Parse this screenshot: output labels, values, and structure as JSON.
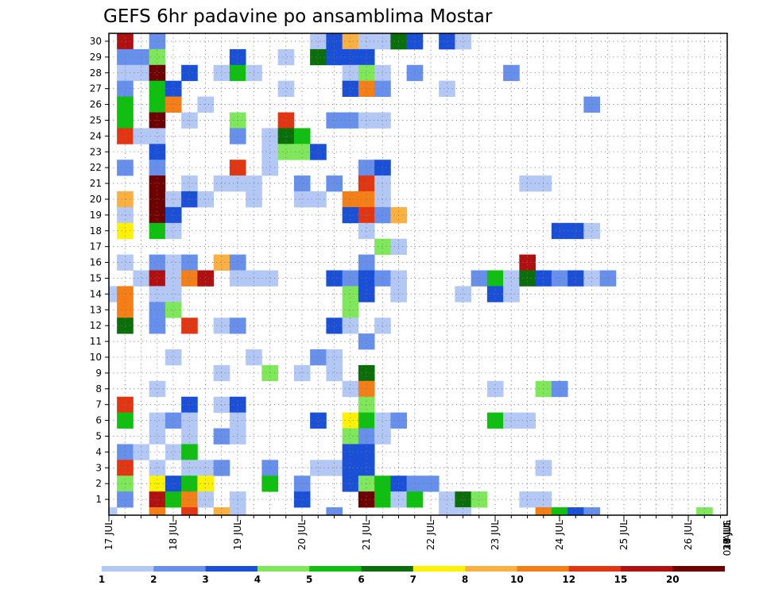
{
  "chart_data": {
    "type": "heatmap",
    "title": "GEFS 6hr padavine po ansamblima Mostar",
    "x_tick_labels": [
      "17 JUL",
      "18 JUL",
      "19 JUL",
      "20 JUL",
      "21 JUL",
      "22 JUL",
      "23 JUL",
      "24 JUL",
      "25 JUL",
      "26 JUL",
      "27 JUL",
      "28 JUL",
      "29 JUL",
      "30 JUL",
      "31 JUL",
      "01 AUG"
    ],
    "y_tick_labels": [
      "1",
      "2",
      "3",
      "4",
      "5",
      "6",
      "7",
      "8",
      "9",
      "10",
      "11",
      "12",
      "13",
      "14",
      "15",
      "16",
      "17",
      "18",
      "19",
      "20",
      "21",
      "22",
      "23",
      "24",
      "25",
      "26",
      "27",
      "28",
      "29",
      "30"
    ],
    "colorbar": {
      "labels": [
        "1",
        "2",
        "3",
        "4",
        "5",
        "6",
        "7",
        "8",
        "10",
        "12",
        "15",
        "20"
      ],
      "colors": [
        "#b4c8f5",
        "#6690ec",
        "#1a4fd8",
        "#7ee85a",
        "#10c010",
        "#0a6e0a",
        "#fff200",
        "#fcb040",
        "#f57f17",
        "#e23612",
        "#b01010",
        "#6e0000"
      ]
    },
    "grid": true,
    "cells_note": "",
    "cells": [
      [
        30,
        1,
        10
      ],
      [
        30,
        3,
        1
      ],
      [
        30,
        13,
        0
      ],
      [
        30,
        14,
        2
      ],
      [
        30,
        15,
        7
      ],
      [
        30,
        16,
        0
      ],
      [
        30,
        17,
        0
      ],
      [
        30,
        18,
        5
      ],
      [
        30,
        19,
        2
      ],
      [
        30,
        21,
        2
      ],
      [
        30,
        22,
        0
      ],
      [
        29,
        1,
        1
      ],
      [
        29,
        2,
        1
      ],
      [
        29,
        3,
        3
      ],
      [
        29,
        8,
        2
      ],
      [
        29,
        11,
        0
      ],
      [
        29,
        13,
        5
      ],
      [
        29,
        14,
        2
      ],
      [
        29,
        15,
        2
      ],
      [
        29,
        16,
        2
      ],
      [
        28,
        1,
        0
      ],
      [
        28,
        2,
        0
      ],
      [
        28,
        3,
        11
      ],
      [
        28,
        5,
        2
      ],
      [
        28,
        7,
        0
      ],
      [
        28,
        8,
        4
      ],
      [
        28,
        9,
        0
      ],
      [
        28,
        15,
        0
      ],
      [
        28,
        16,
        3
      ],
      [
        28,
        17,
        0
      ],
      [
        28,
        19,
        1
      ],
      [
        28,
        25,
        1
      ],
      [
        27,
        1,
        1
      ],
      [
        27,
        3,
        4
      ],
      [
        27,
        4,
        2
      ],
      [
        27,
        11,
        0
      ],
      [
        27,
        15,
        2
      ],
      [
        27,
        16,
        8
      ],
      [
        27,
        17,
        1
      ],
      [
        27,
        21,
        0
      ],
      [
        26,
        1,
        4
      ],
      [
        26,
        3,
        4
      ],
      [
        26,
        4,
        8
      ],
      [
        26,
        6,
        0
      ],
      [
        26,
        30,
        1
      ],
      [
        25,
        1,
        4
      ],
      [
        25,
        3,
        11
      ],
      [
        25,
        5,
        0
      ],
      [
        25,
        8,
        3
      ],
      [
        25,
        11,
        9
      ],
      [
        25,
        14,
        1
      ],
      [
        25,
        15,
        1
      ],
      [
        25,
        16,
        0
      ],
      [
        25,
        17,
        0
      ],
      [
        24,
        1,
        9
      ],
      [
        24,
        2,
        0
      ],
      [
        24,
        3,
        0
      ],
      [
        24,
        8,
        1
      ],
      [
        24,
        10,
        0
      ],
      [
        24,
        11,
        5
      ],
      [
        24,
        12,
        4
      ],
      [
        23,
        3,
        2
      ],
      [
        23,
        10,
        0
      ],
      [
        23,
        11,
        3
      ],
      [
        23,
        12,
        3
      ],
      [
        23,
        13,
        2
      ],
      [
        22,
        1,
        1
      ],
      [
        22,
        3,
        1
      ],
      [
        22,
        8,
        9
      ],
      [
        22,
        10,
        0
      ],
      [
        22,
        16,
        1
      ],
      [
        22,
        17,
        2
      ],
      [
        21,
        3,
        11
      ],
      [
        21,
        5,
        0
      ],
      [
        21,
        7,
        0
      ],
      [
        21,
        8,
        0
      ],
      [
        21,
        9,
        0
      ],
      [
        21,
        12,
        1
      ],
      [
        21,
        14,
        1
      ],
      [
        21,
        16,
        9
      ],
      [
        21,
        17,
        0
      ],
      [
        21,
        26,
        0
      ],
      [
        21,
        27,
        0
      ],
      [
        20,
        1,
        7
      ],
      [
        20,
        3,
        11
      ],
      [
        20,
        4,
        0
      ],
      [
        20,
        5,
        2
      ],
      [
        20,
        6,
        0
      ],
      [
        20,
        9,
        0
      ],
      [
        20,
        12,
        0
      ],
      [
        20,
        13,
        0
      ],
      [
        20,
        15,
        8
      ],
      [
        20,
        16,
        8
      ],
      [
        20,
        17,
        0
      ],
      [
        19,
        1,
        0
      ],
      [
        19,
        3,
        11
      ],
      [
        19,
        4,
        2
      ],
      [
        19,
        15,
        2
      ],
      [
        19,
        16,
        9
      ],
      [
        19,
        17,
        1
      ],
      [
        19,
        18,
        7
      ],
      [
        18,
        1,
        6
      ],
      [
        18,
        3,
        4
      ],
      [
        18,
        4,
        0
      ],
      [
        18,
        16,
        0
      ],
      [
        18,
        28,
        2
      ],
      [
        18,
        29,
        2
      ],
      [
        18,
        30,
        0
      ],
      [
        17,
        17,
        3
      ],
      [
        17,
        18,
        0
      ],
      [
        16,
        1,
        0
      ],
      [
        16,
        3,
        1
      ],
      [
        16,
        4,
        0
      ],
      [
        16,
        5,
        1
      ],
      [
        16,
        7,
        7
      ],
      [
        16,
        8,
        1
      ],
      [
        16,
        16,
        1
      ],
      [
        16,
        26,
        10
      ],
      [
        15,
        2,
        0
      ],
      [
        15,
        3,
        10
      ],
      [
        15,
        4,
        0
      ],
      [
        15,
        5,
        8
      ],
      [
        15,
        6,
        10
      ],
      [
        15,
        8,
        0
      ],
      [
        15,
        9,
        0
      ],
      [
        15,
        10,
        0
      ],
      [
        15,
        14,
        2
      ],
      [
        15,
        15,
        1
      ],
      [
        15,
        16,
        2
      ],
      [
        15,
        17,
        1
      ],
      [
        15,
        18,
        0
      ],
      [
        15,
        23,
        1
      ],
      [
        15,
        24,
        4
      ],
      [
        15,
        25,
        0
      ],
      [
        15,
        26,
        5
      ],
      [
        15,
        27,
        2
      ],
      [
        15,
        28,
        1
      ],
      [
        15,
        29,
        2
      ],
      [
        15,
        30,
        0
      ],
      [
        15,
        31,
        1
      ],
      [
        14,
        0,
        0
      ],
      [
        14,
        1,
        8
      ],
      [
        14,
        3,
        0
      ],
      [
        14,
        4,
        0
      ],
      [
        14,
        15,
        3
      ],
      [
        14,
        16,
        2
      ],
      [
        14,
        18,
        0
      ],
      [
        14,
        22,
        0
      ],
      [
        14,
        24,
        2
      ],
      [
        14,
        25,
        0
      ],
      [
        13,
        1,
        8
      ],
      [
        13,
        3,
        1
      ],
      [
        13,
        4,
        3
      ],
      [
        13,
        15,
        3
      ],
      [
        12,
        1,
        5
      ],
      [
        12,
        3,
        1
      ],
      [
        12,
        5,
        9
      ],
      [
        12,
        7,
        0
      ],
      [
        12,
        8,
        1
      ],
      [
        12,
        14,
        2
      ],
      [
        12,
        15,
        0
      ],
      [
        12,
        17,
        0
      ],
      [
        11,
        16,
        1
      ],
      [
        10,
        4,
        0
      ],
      [
        10,
        9,
        0
      ],
      [
        10,
        13,
        1
      ],
      [
        10,
        14,
        0
      ],
      [
        9,
        7,
        0
      ],
      [
        9,
        10,
        3
      ],
      [
        9,
        12,
        0
      ],
      [
        9,
        14,
        0
      ],
      [
        9,
        16,
        5
      ],
      [
        8,
        3,
        0
      ],
      [
        8,
        15,
        0
      ],
      [
        8,
        16,
        8
      ],
      [
        8,
        24,
        0
      ],
      [
        8,
        27,
        3
      ],
      [
        8,
        28,
        1
      ],
      [
        7,
        1,
        9
      ],
      [
        7,
        5,
        2
      ],
      [
        7,
        7,
        0
      ],
      [
        7,
        8,
        2
      ],
      [
        7,
        16,
        3
      ],
      [
        6,
        1,
        4
      ],
      [
        6,
        3,
        0
      ],
      [
        6,
        4,
        1
      ],
      [
        6,
        5,
        0
      ],
      [
        6,
        8,
        0
      ],
      [
        6,
        13,
        2
      ],
      [
        6,
        15,
        6
      ],
      [
        6,
        16,
        4
      ],
      [
        6,
        17,
        0
      ],
      [
        6,
        18,
        1
      ],
      [
        6,
        24,
        4
      ],
      [
        6,
        25,
        0
      ],
      [
        6,
        26,
        0
      ],
      [
        5,
        3,
        0
      ],
      [
        5,
        5,
        0
      ],
      [
        5,
        7,
        1
      ],
      [
        5,
        8,
        0
      ],
      [
        5,
        15,
        3
      ],
      [
        5,
        16,
        1
      ],
      [
        5,
        17,
        0
      ],
      [
        4,
        1,
        1
      ],
      [
        4,
        2,
        0
      ],
      [
        4,
        4,
        0
      ],
      [
        4,
        5,
        4
      ],
      [
        4,
        15,
        2
      ],
      [
        4,
        16,
        2
      ],
      [
        3,
        1,
        9
      ],
      [
        3,
        3,
        0
      ],
      [
        3,
        5,
        0
      ],
      [
        3,
        6,
        0
      ],
      [
        3,
        7,
        1
      ],
      [
        3,
        10,
        1
      ],
      [
        3,
        13,
        0
      ],
      [
        3,
        14,
        0
      ],
      [
        3,
        15,
        2
      ],
      [
        3,
        16,
        2
      ],
      [
        3,
        27,
        0
      ],
      [
        2,
        1,
        3
      ],
      [
        2,
        3,
        6
      ],
      [
        2,
        4,
        2
      ],
      [
        2,
        5,
        4
      ],
      [
        2,
        6,
        6
      ],
      [
        2,
        10,
        4
      ],
      [
        2,
        12,
        1
      ],
      [
        2,
        15,
        2
      ],
      [
        2,
        16,
        3
      ],
      [
        2,
        17,
        4
      ],
      [
        2,
        18,
        2
      ],
      [
        2,
        19,
        1
      ],
      [
        2,
        20,
        1
      ],
      [
        1,
        1,
        1
      ],
      [
        1,
        3,
        10
      ],
      [
        1,
        4,
        4
      ],
      [
        1,
        5,
        8
      ],
      [
        1,
        6,
        0
      ],
      [
        1,
        8,
        0
      ],
      [
        1,
        12,
        2
      ],
      [
        1,
        16,
        11
      ],
      [
        1,
        17,
        4
      ],
      [
        1,
        18,
        0
      ],
      [
        1,
        19,
        4
      ],
      [
        1,
        21,
        0
      ],
      [
        1,
        22,
        5
      ],
      [
        1,
        23,
        3
      ],
      [
        1,
        26,
        0
      ],
      [
        1,
        27,
        0
      ],
      [
        0,
        0,
        0
      ],
      [
        0,
        3,
        8
      ],
      [
        0,
        5,
        9
      ],
      [
        0,
        7,
        7
      ],
      [
        0,
        8,
        0
      ],
      [
        0,
        14,
        1
      ],
      [
        0,
        21,
        0
      ],
      [
        0,
        22,
        0
      ],
      [
        0,
        27,
        8
      ],
      [
        0,
        28,
        4
      ],
      [
        0,
        29,
        2
      ],
      [
        0,
        30,
        1
      ],
      [
        0,
        37,
        3
      ]
    ]
  }
}
